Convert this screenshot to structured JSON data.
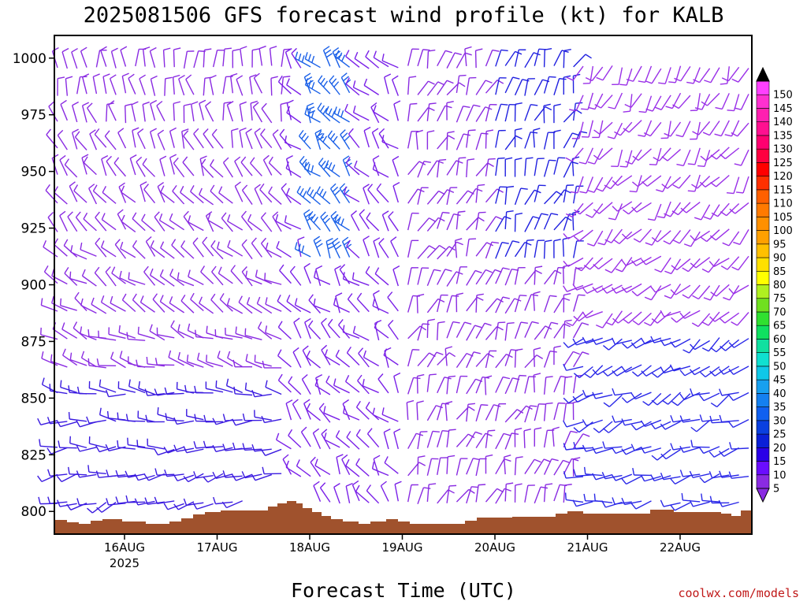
{
  "chart_data": {
    "type": "wind-barb-time-height",
    "title": "2025081506 GFS forecast wind profile (kt) for KALB",
    "xlabel": "Forecast Time (UTC)",
    "x_ticks": [
      "16AUG",
      "17AUG",
      "18AUG",
      "19AUG",
      "20AUG",
      "21AUG",
      "22AUG"
    ],
    "x_year_label": "2025",
    "y_ticks": [
      800,
      825,
      850,
      875,
      900,
      925,
      950,
      975,
      1000
    ],
    "ylim": [
      1010,
      790
    ],
    "colorbar_labels": [
      5,
      10,
      15,
      20,
      25,
      30,
      35,
      40,
      45,
      50,
      55,
      60,
      65,
      70,
      75,
      80,
      85,
      90,
      95,
      100,
      105,
      110,
      115,
      120,
      125,
      130,
      135,
      140,
      145,
      150
    ],
    "colorbar_colors": [
      "#8a2be2",
      "#6a0dff",
      "#2a00e8",
      "#0a20d8",
      "#0a40e0",
      "#1060f0",
      "#1480f0",
      "#18a0f0",
      "#10c8e8",
      "#10e0d0",
      "#10e0a0",
      "#10e060",
      "#30e030",
      "#70e020",
      "#b0f020",
      "#ffff00",
      "#ffe000",
      "#ffc000",
      "#ffa000",
      "#ff9000",
      "#ff7a00",
      "#ff6000",
      "#ff3000",
      "#ff0000",
      "#ff0040",
      "#ff0070",
      "#ff1090",
      "#ff20b0",
      "#ff30d0",
      "#ff40ff"
    ],
    "terrain_color": "#a0522d",
    "credit": "coolwx.com/models"
  }
}
